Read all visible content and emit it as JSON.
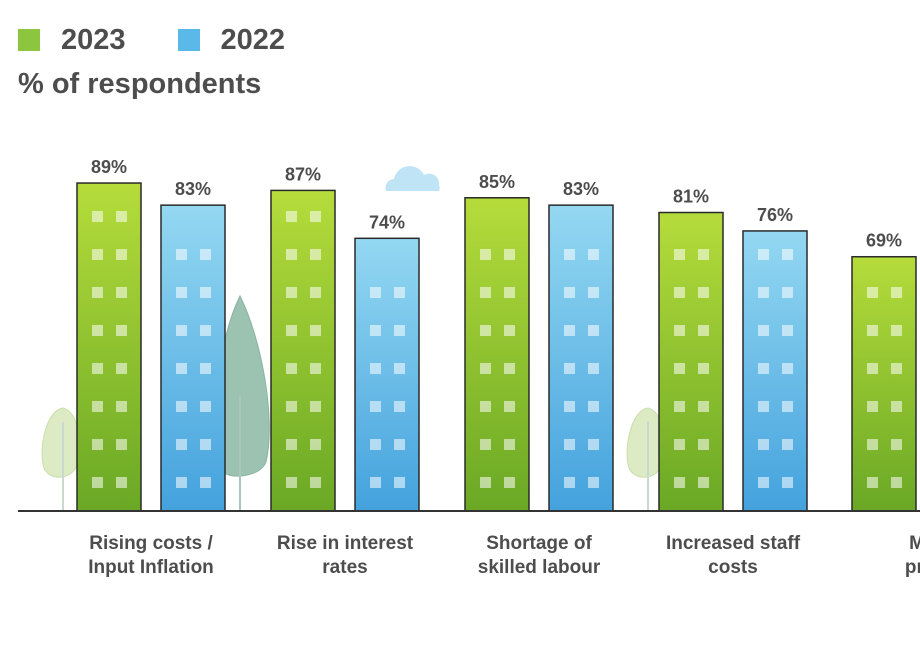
{
  "legend": [
    {
      "label": "2023",
      "color": "#8cc63f"
    },
    {
      "label": "2022",
      "color": "#5bb9ea"
    }
  ],
  "subtitle": "% of respondents",
  "chart_data": {
    "type": "bar",
    "categories": [
      [
        "Rising costs /",
        "Input Inflation"
      ],
      [
        "Rise in interest",
        "rates"
      ],
      [
        "Shortage of",
        "skilled labour"
      ],
      [
        "Increased staff",
        "costs"
      ],
      [
        "Mar",
        "profi"
      ]
    ],
    "series": [
      {
        "name": "2023",
        "values": [
          89,
          87,
          85,
          81,
          69
        ],
        "labels": [
          "89%",
          "87%",
          "85%",
          "81%",
          "69%"
        ]
      },
      {
        "name": "2022",
        "values": [
          83,
          74,
          83,
          76,
          null
        ],
        "labels": [
          "83%",
          "74%",
          "83%",
          "76%",
          ""
        ]
      }
    ],
    "ylim": [
      0,
      100
    ],
    "grid": false,
    "legend_position": "top-left",
    "colors": {
      "2023_top": "#b5dc3b",
      "2023_bottom": "#6aa825",
      "2022_top": "#94d8f2",
      "2022_bottom": "#44a2dd",
      "axis": "#333333",
      "window": "#ffffff"
    }
  }
}
